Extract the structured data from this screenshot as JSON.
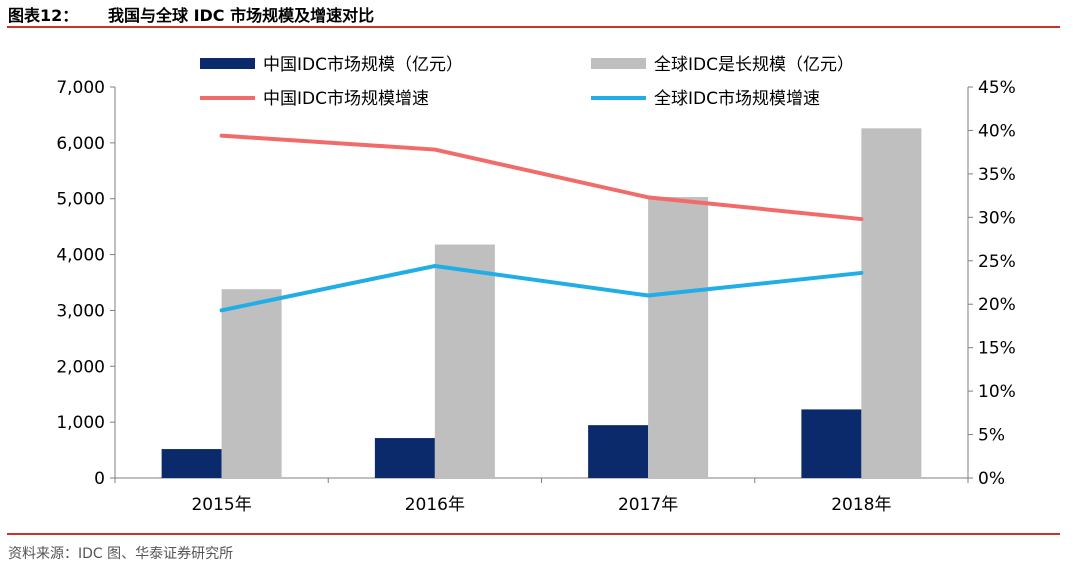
{
  "header": {
    "figure_number": "图表12：",
    "title": "我国与全球 IDC 市场规模及增速对比"
  },
  "source": "资料来源：IDC 图、华泰证券研究所",
  "colors": {
    "china_bar": "#0a2a6b",
    "global_bar": "#bfbfbf",
    "china_growth": "#f26b6b",
    "global_growth": "#21aee6",
    "rule": "#c9342a"
  },
  "chart_data": {
    "type": "bar",
    "categories": [
      "2015年",
      "2016年",
      "2017年",
      "2018年"
    ],
    "series": [
      {
        "name": "中国IDC市场规模（亿元）",
        "kind": "bar",
        "axis": "left",
        "values": [
          518,
          715,
          946,
          1228
        ]
      },
      {
        "name": "全球IDC是长规模（亿元）",
        "kind": "bar",
        "axis": "left",
        "values": [
          3380,
          4180,
          5030,
          6260
        ]
      },
      {
        "name": "中国IDC市场规模增速",
        "kind": "line",
        "axis": "right",
        "values": [
          39.4,
          37.8,
          32.3,
          29.8
        ]
      },
      {
        "name": "全球IDC市场规模增速",
        "kind": "line",
        "axis": "right",
        "values": [
          19.3,
          24.4,
          21.0,
          23.6
        ]
      }
    ],
    "left_axis": {
      "min": 0,
      "max": 7000,
      "ticks": [
        0,
        1000,
        2000,
        3000,
        4000,
        5000,
        6000,
        7000
      ],
      "tick_labels": [
        "0",
        "1,000",
        "2,000",
        "3,000",
        "4,000",
        "5,000",
        "6,000",
        "7,000"
      ]
    },
    "right_axis": {
      "min": 0,
      "max": 45,
      "ticks": [
        0,
        5,
        10,
        15,
        20,
        25,
        30,
        35,
        40,
        45
      ],
      "tick_labels": [
        "0%",
        "5%",
        "10%",
        "15%",
        "20%",
        "25%",
        "30%",
        "35%",
        "40%",
        "45%"
      ]
    },
    "grid": false,
    "legend_position": "top"
  }
}
